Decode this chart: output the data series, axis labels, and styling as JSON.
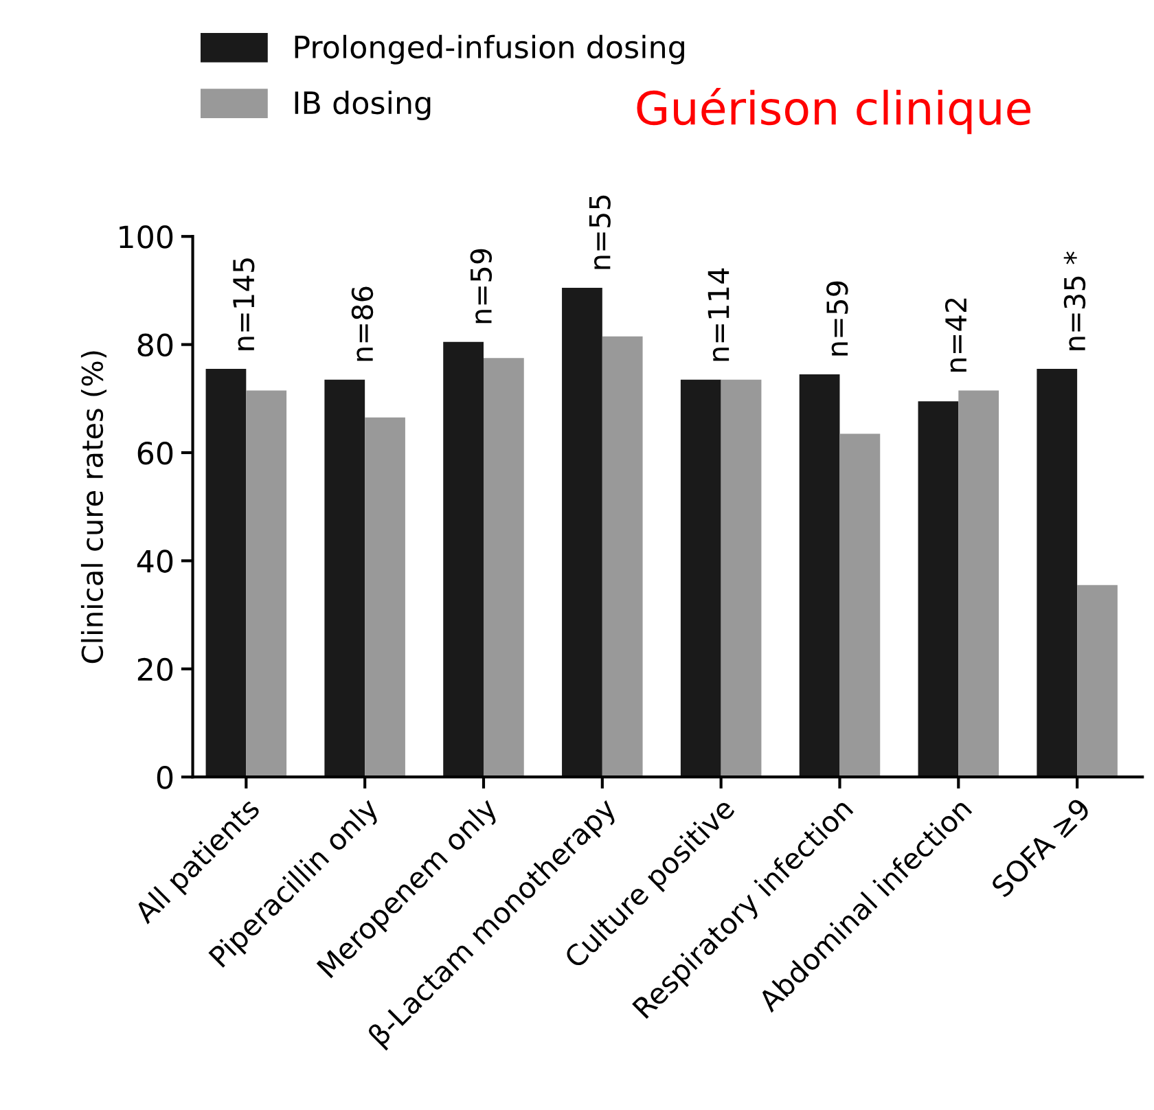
{
  "chart_data": {
    "type": "bar",
    "title": "Guérison clinique",
    "ylabel": "Clinical cure rates (%)",
    "categories": [
      "All patients",
      "Piperacillin only",
      "Meropenem only",
      "β-Lactam monotherapy",
      "Culture positive",
      "Respiratory infection",
      "Abdominal infection",
      "SOFA ≥9"
    ],
    "series": [
      {
        "name": "Prolonged-infusion dosing",
        "color": "#1a1a1a",
        "values": [
          75.5,
          73.5,
          80.5,
          90.5,
          73.5,
          74.5,
          69.5,
          75.5
        ]
      },
      {
        "name": "IB dosing",
        "color": "#999999",
        "values": [
          71.5,
          66.5,
          77.5,
          81.5,
          73.5,
          63.5,
          71.5,
          35.5
        ]
      }
    ],
    "annotations": [
      "n=145",
      "n=86",
      "n=59",
      "n=55",
      "n=114",
      "n=59",
      "n=42",
      "n=35 *"
    ],
    "ylim": [
      0,
      100
    ],
    "yticks": [
      0,
      20,
      40,
      60,
      80,
      100
    ],
    "grid": false,
    "legend": "top left"
  }
}
